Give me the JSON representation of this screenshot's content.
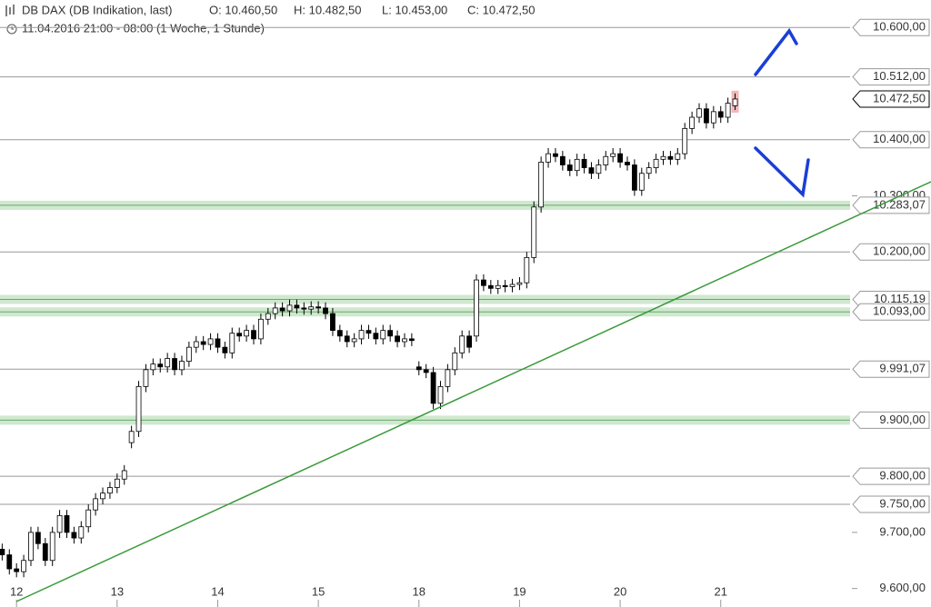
{
  "header": {
    "instrument": "DB DAX (DB Indikation, last)",
    "open": "O: 10.460,50",
    "high": "H: 10.482,50",
    "low": "L: 10.453,00",
    "close": "C: 10.472,50",
    "period": "11.04.2016 21:00 - 08:00 (1 Woche, 1 Stunde)"
  },
  "chart_data": {
    "type": "candlestick",
    "xlim": [
      -2.3,
      116
    ],
    "ylim": [
      9567,
      10649
    ],
    "xticks": [
      {
        "value": 0,
        "label": "12"
      },
      {
        "value": 14,
        "label": "13"
      },
      {
        "value": 28,
        "label": "14"
      },
      {
        "value": 42,
        "label": "15"
      },
      {
        "value": 56,
        "label": "18"
      },
      {
        "value": 70,
        "label": "19"
      },
      {
        "value": 84,
        "label": "20"
      },
      {
        "value": 98,
        "label": "21"
      }
    ],
    "yticks": [
      {
        "value": 10300,
        "label": "10.300,00"
      },
      {
        "value": 9700,
        "label": "9.700,00"
      },
      {
        "value": 9600,
        "label": "9.600,00"
      }
    ],
    "levels": [
      {
        "value": 10600,
        "label": "10.600,00"
      },
      {
        "value": 10512,
        "label": "10.512,00"
      },
      {
        "value": 10472.5,
        "label": "10.472,50",
        "current": true
      },
      {
        "value": 10400,
        "label": "10.400,00"
      },
      {
        "value": 10283.07,
        "label": "10.283,07",
        "zone": true
      },
      {
        "value": 10200,
        "label": "10.200,00"
      },
      {
        "value": 10115.19,
        "label": "10.115,19",
        "zone": true
      },
      {
        "value": 10093,
        "label": "10.093,00",
        "zone": true
      },
      {
        "value": 9991.07,
        "label": "9.991,07"
      },
      {
        "value": 9900,
        "label": "9.900,00",
        "zone": true
      },
      {
        "value": 9800,
        "label": "9.800,00"
      },
      {
        "value": 9750,
        "label": "9.750,00"
      }
    ],
    "up_color": "#ffffff",
    "down_color": "#000000",
    "x": [
      -2,
      -1,
      0,
      1,
      2,
      3,
      4,
      5,
      6,
      7,
      8,
      9,
      10,
      11,
      12,
      13,
      14,
      15,
      16,
      17,
      18,
      19,
      20,
      21,
      22,
      23,
      24,
      25,
      26,
      27,
      28,
      29,
      30,
      31,
      32,
      33,
      34,
      35,
      36,
      37,
      38,
      39,
      40,
      41,
      42,
      43,
      44,
      45,
      46,
      47,
      48,
      49,
      50,
      51,
      52,
      53,
      54,
      55,
      56,
      57,
      58,
      59,
      60,
      61,
      62,
      63,
      64,
      65,
      66,
      67,
      68,
      69,
      70,
      71,
      72,
      73,
      74,
      75,
      76,
      77,
      78,
      79,
      80,
      81,
      82,
      83,
      84,
      85,
      86,
      87,
      88,
      89,
      90,
      91,
      92,
      93,
      94,
      95,
      96,
      97,
      98,
      99,
      100
    ],
    "open": [
      9670,
      9660,
      9635,
      9630,
      9650,
      9700,
      9680,
      9650,
      9700,
      9730,
      9700,
      9690,
      9710,
      9740,
      9760,
      9770,
      9780,
      9795,
      9860,
      9880,
      9960,
      9990,
      10000,
      9995,
      10010,
      9990,
      10005,
      10030,
      10040,
      10035,
      10045,
      10030,
      10020,
      10055,
      10050,
      10060,
      10045,
      10080,
      10090,
      10100,
      10095,
      10105,
      10100,
      10098,
      10102,
      10100,
      10090,
      10060,
      10050,
      10040,
      10045,
      10060,
      10055,
      10045,
      10060,
      10050,
      10040,
      10045,
      9995,
      9990,
      9985,
      9930,
      9960,
      9990,
      10020,
      10050,
      10050,
      10150,
      10140,
      10135,
      10140,
      10138,
      10142,
      10145,
      10190,
      10280,
      10360,
      10375,
      10370,
      10355,
      10345,
      10365,
      10350,
      10340,
      10355,
      10370,
      10375,
      10360,
      10355,
      10310,
      10340,
      10350,
      10365,
      10370,
      10365,
      10375,
      10420,
      10440,
      10455,
      10430,
      10450,
      10440,
      10460.5
    ],
    "high": [
      9680,
      9670,
      9645,
      9660,
      9710,
      9710,
      9690,
      9710,
      9740,
      9740,
      9710,
      9720,
      9750,
      9770,
      9780,
      9790,
      9805,
      9820,
      9890,
      9970,
      10000,
      10010,
      10010,
      10020,
      10020,
      10015,
      10040,
      10050,
      10050,
      10055,
      10055,
      10040,
      10065,
      10065,
      10070,
      10070,
      10090,
      10100,
      10110,
      10110,
      10115,
      10115,
      10110,
      10112,
      10112,
      10110,
      10100,
      10070,
      10060,
      10055,
      10070,
      10070,
      10065,
      10070,
      10070,
      10060,
      10055,
      10055,
      10005,
      10000,
      9995,
      9970,
      10000,
      10030,
      10060,
      10060,
      10160,
      10160,
      10150,
      10150,
      10150,
      10152,
      10155,
      10200,
      10290,
      10370,
      10385,
      10385,
      10380,
      10365,
      10375,
      10375,
      10360,
      10365,
      10380,
      10385,
      10385,
      10370,
      10365,
      10350,
      10360,
      10375,
      10380,
      10380,
      10385,
      10430,
      10450,
      10465,
      10465,
      10460,
      10460,
      10475,
      10482.5
    ],
    "low": [
      9650,
      9625,
      9620,
      9620,
      9640,
      9670,
      9640,
      9640,
      9690,
      9690,
      9680,
      9680,
      9700,
      9730,
      9750,
      9760,
      9770,
      9785,
      9850,
      9870,
      9950,
      9980,
      9985,
      9985,
      9980,
      9980,
      9995,
      10020,
      10025,
      10025,
      10020,
      10010,
      10010,
      10040,
      10040,
      10035,
      10035,
      10070,
      10080,
      10085,
      10085,
      10090,
      10088,
      10088,
      10090,
      10080,
      10050,
      10040,
      10030,
      10030,
      10035,
      10045,
      10035,
      10035,
      10040,
      10030,
      10030,
      10032,
      9980,
      9975,
      9920,
      9920,
      9950,
      9980,
      10010,
      10020,
      10040,
      10130,
      10125,
      10125,
      10128,
      10128,
      10132,
      10135,
      10180,
      10270,
      10350,
      10360,
      10345,
      10335,
      10335,
      10340,
      10330,
      10330,
      10345,
      10360,
      10350,
      10345,
      10300,
      10300,
      10330,
      10340,
      10355,
      10355,
      10355,
      10365,
      10410,
      10430,
      10420,
      10420,
      10430,
      10430,
      10453
    ],
    "close": [
      9660,
      9635,
      9630,
      9650,
      9700,
      9680,
      9650,
      9700,
      9730,
      9700,
      9690,
      9710,
      9740,
      9760,
      9770,
      9780,
      9795,
      9810,
      9880,
      9960,
      9990,
      10000,
      9995,
      10010,
      9990,
      10005,
      10030,
      10040,
      10035,
      10045,
      10030,
      10020,
      10055,
      10050,
      10060,
      10045,
      10080,
      10090,
      10100,
      10095,
      10105,
      10100,
      10098,
      10102,
      10100,
      10090,
      10060,
      10050,
      10040,
      10045,
      10060,
      10055,
      10045,
      10060,
      10050,
      10040,
      10045,
      10042,
      9990,
      9985,
      9930,
      9960,
      9990,
      10020,
      10050,
      10030,
      10150,
      10140,
      10135,
      10140,
      10138,
      10142,
      10145,
      10190,
      10280,
      10360,
      10375,
      10370,
      10355,
      10345,
      10365,
      10350,
      10340,
      10355,
      10370,
      10375,
      10360,
      10355,
      10310,
      10340,
      10350,
      10365,
      10370,
      10365,
      10375,
      10420,
      10440,
      10455,
      10430,
      10450,
      10440,
      10465,
      10472.5
    ]
  }
}
